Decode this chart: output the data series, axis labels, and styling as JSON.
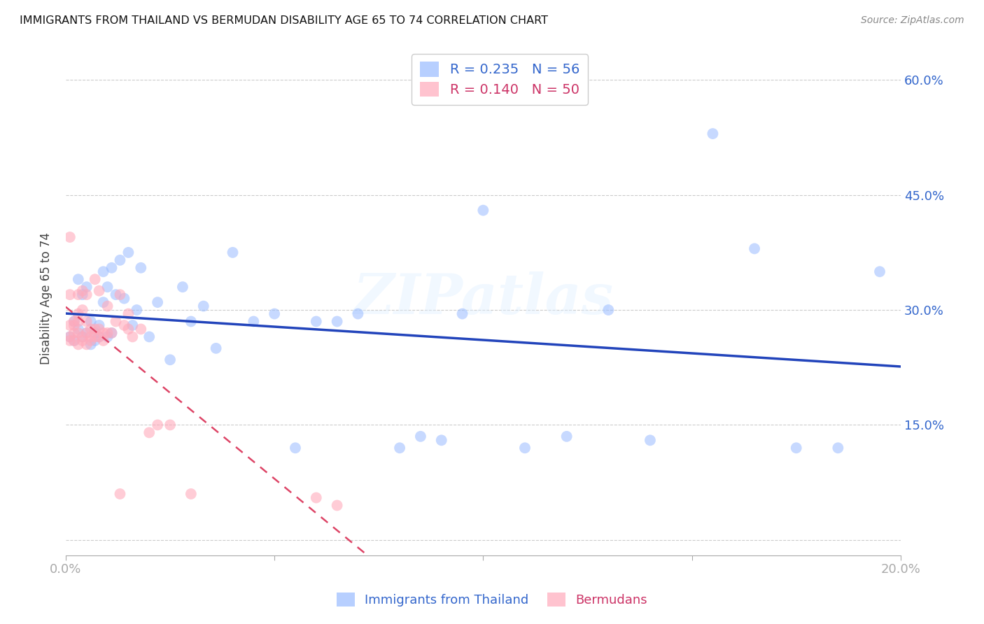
{
  "title": "IMMIGRANTS FROM THAILAND VS BERMUDAN DISABILITY AGE 65 TO 74 CORRELATION CHART",
  "source": "Source: ZipAtlas.com",
  "ylabel_label": "Disability Age 65 to 74",
  "xlim": [
    0.0,
    0.2
  ],
  "ylim": [
    -0.02,
    0.65
  ],
  "legend_blue_R": "R = 0.235",
  "legend_blue_N": "N = 56",
  "legend_pink_R": "R = 0.140",
  "legend_pink_N": "N = 50",
  "blue_color": "#99bbff",
  "pink_color": "#ffaabb",
  "blue_line_color": "#2244bb",
  "pink_line_color": "#dd4466",
  "watermark": "ZIPatlas",
  "blue_scatter_x": [
    0.001,
    0.002,
    0.002,
    0.003,
    0.003,
    0.004,
    0.004,
    0.005,
    0.005,
    0.006,
    0.006,
    0.007,
    0.007,
    0.008,
    0.008,
    0.009,
    0.009,
    0.01,
    0.01,
    0.011,
    0.011,
    0.012,
    0.013,
    0.014,
    0.015,
    0.016,
    0.017,
    0.018,
    0.02,
    0.022,
    0.025,
    0.028,
    0.03,
    0.033,
    0.036,
    0.04,
    0.045,
    0.05,
    0.055,
    0.06,
    0.065,
    0.07,
    0.08,
    0.085,
    0.09,
    0.095,
    0.1,
    0.11,
    0.12,
    0.13,
    0.14,
    0.155,
    0.165,
    0.175,
    0.185,
    0.195
  ],
  "blue_scatter_y": [
    0.265,
    0.26,
    0.285,
    0.275,
    0.34,
    0.265,
    0.32,
    0.27,
    0.33,
    0.255,
    0.285,
    0.26,
    0.27,
    0.265,
    0.28,
    0.35,
    0.31,
    0.265,
    0.33,
    0.27,
    0.355,
    0.32,
    0.365,
    0.315,
    0.375,
    0.28,
    0.3,
    0.355,
    0.265,
    0.31,
    0.235,
    0.33,
    0.285,
    0.305,
    0.25,
    0.375,
    0.285,
    0.295,
    0.12,
    0.285,
    0.285,
    0.295,
    0.12,
    0.135,
    0.13,
    0.295,
    0.43,
    0.12,
    0.135,
    0.3,
    0.13,
    0.53,
    0.38,
    0.12,
    0.12,
    0.35
  ],
  "pink_scatter_x": [
    0.001,
    0.001,
    0.001,
    0.001,
    0.001,
    0.002,
    0.002,
    0.002,
    0.002,
    0.003,
    0.003,
    0.003,
    0.003,
    0.003,
    0.004,
    0.004,
    0.004,
    0.004,
    0.005,
    0.005,
    0.005,
    0.005,
    0.006,
    0.006,
    0.006,
    0.007,
    0.007,
    0.007,
    0.008,
    0.008,
    0.008,
    0.009,
    0.009,
    0.01,
    0.01,
    0.011,
    0.012,
    0.013,
    0.013,
    0.014,
    0.015,
    0.015,
    0.016,
    0.018,
    0.02,
    0.022,
    0.025,
    0.03,
    0.06,
    0.065
  ],
  "pink_scatter_y": [
    0.265,
    0.28,
    0.26,
    0.395,
    0.32,
    0.27,
    0.28,
    0.26,
    0.285,
    0.255,
    0.27,
    0.285,
    0.295,
    0.32,
    0.26,
    0.265,
    0.3,
    0.325,
    0.255,
    0.27,
    0.32,
    0.285,
    0.26,
    0.275,
    0.265,
    0.265,
    0.34,
    0.275,
    0.265,
    0.275,
    0.325,
    0.26,
    0.27,
    0.27,
    0.305,
    0.27,
    0.285,
    0.06,
    0.32,
    0.28,
    0.275,
    0.295,
    0.265,
    0.275,
    0.14,
    0.15,
    0.15,
    0.06,
    0.055,
    0.045
  ]
}
